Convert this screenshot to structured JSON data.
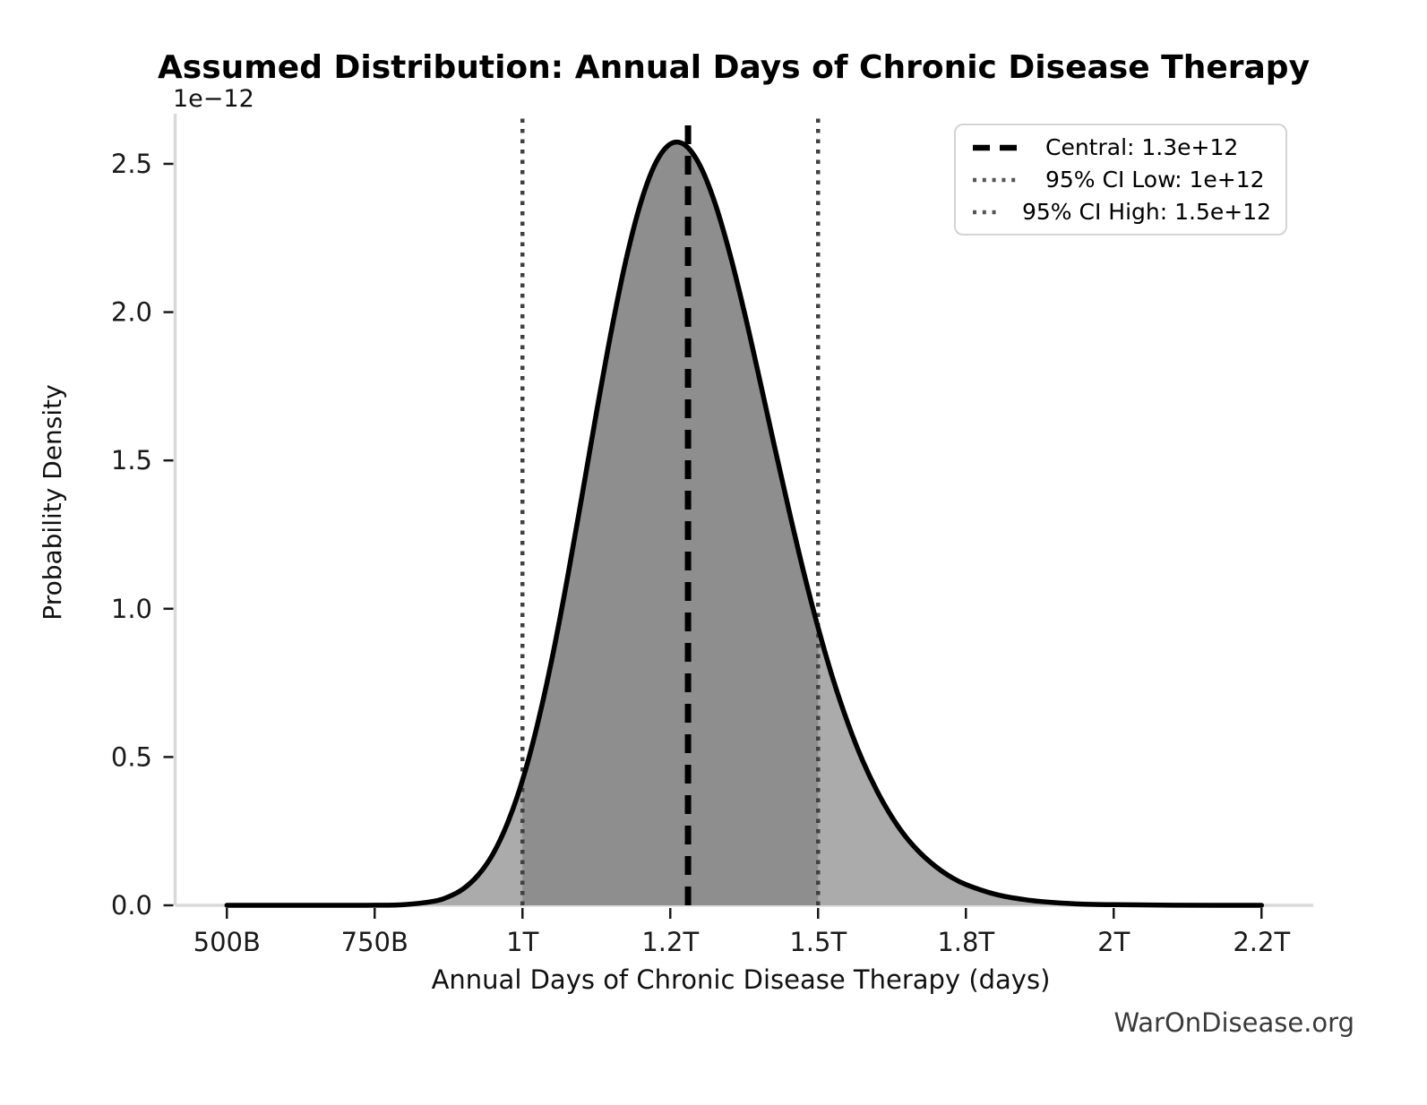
{
  "watermark": "WarOnDisease.org",
  "chart_data": {
    "type": "area",
    "title": "Assumed Distribution: Annual Days of Chronic Disease Therapy",
    "xlabel": "Annual Days of Chronic Disease Therapy (days)",
    "ylabel": "Probability Density",
    "y_offset_label": "1e−12",
    "xlim": [
      0.4125,
      2.3375
    ],
    "ylim": [
      0,
      2.669
    ],
    "x_ticks": [
      {
        "value": 0.5,
        "label": "500B"
      },
      {
        "value": 0.75,
        "label": "750B"
      },
      {
        "value": 1.0,
        "label": "1T"
      },
      {
        "value": 1.25,
        "label": "1.2T"
      },
      {
        "value": 1.5,
        "label": "1.5T"
      },
      {
        "value": 1.75,
        "label": "1.8T"
      },
      {
        "value": 2.0,
        "label": "2T"
      },
      {
        "value": 2.25,
        "label": "2.2T"
      }
    ],
    "y_ticks": [
      {
        "value": 0.0,
        "label": "0.0"
      },
      {
        "value": 0.5,
        "label": "0.5"
      },
      {
        "value": 1.0,
        "label": "1.0"
      },
      {
        "value": 1.5,
        "label": "1.5"
      },
      {
        "value": 2.0,
        "label": "2.0"
      },
      {
        "value": 2.5,
        "label": "2.5"
      }
    ],
    "curve": {
      "x_unit_trillions_days": true,
      "density_unit_1e-12": true,
      "x": [
        0.5,
        0.6,
        0.7,
        0.75,
        0.8,
        0.85,
        0.875,
        0.9,
        0.925,
        0.95,
        0.975,
        1.0,
        1.025,
        1.05,
        1.075,
        1.1,
        1.125,
        1.15,
        1.175,
        1.2,
        1.225,
        1.25,
        1.275,
        1.3,
        1.325,
        1.35,
        1.375,
        1.4,
        1.425,
        1.45,
        1.475,
        1.5,
        1.525,
        1.55,
        1.575,
        1.6,
        1.625,
        1.65,
        1.675,
        1.7,
        1.725,
        1.75,
        1.8,
        1.85,
        1.9,
        1.95,
        2.0,
        2.1,
        2.25
      ],
      "density": [
        0,
        0,
        0,
        0.0003,
        0.0025,
        0.0139,
        0.029,
        0.056,
        0.102,
        0.173,
        0.279,
        0.422,
        0.608,
        0.833,
        1.093,
        1.374,
        1.661,
        1.934,
        2.176,
        2.369,
        2.502,
        2.567,
        2.563,
        2.495,
        2.371,
        2.202,
        2.002,
        1.783,
        1.558,
        1.338,
        1.128,
        0.936,
        0.765,
        0.616,
        0.489,
        0.384,
        0.297,
        0.227,
        0.172,
        0.129,
        0.095,
        0.07,
        0.037,
        0.019,
        0.009,
        0.004,
        0.002,
        0.0004,
        0
      ]
    },
    "ci_region": [
      1.0,
      1.5
    ],
    "lines": [
      {
        "name": "central",
        "style": "dashed",
        "color": "#000000",
        "x": 1.28,
        "legend": "Central: 1.3e+12"
      },
      {
        "name": "ci-low",
        "style": "dotted",
        "color": "#404040",
        "x": 1.0,
        "legend": "95% CI Low: 1e+12"
      },
      {
        "name": "ci-high",
        "style": "dotted",
        "color": "#404040",
        "x": 1.5,
        "legend": "95% CI High: 1.5e+12"
      }
    ],
    "colors": {
      "fill_light": "#ababab",
      "fill_dark": "#8e8e8e",
      "curve": "#000000",
      "spine": "#d9d9d9"
    }
  }
}
